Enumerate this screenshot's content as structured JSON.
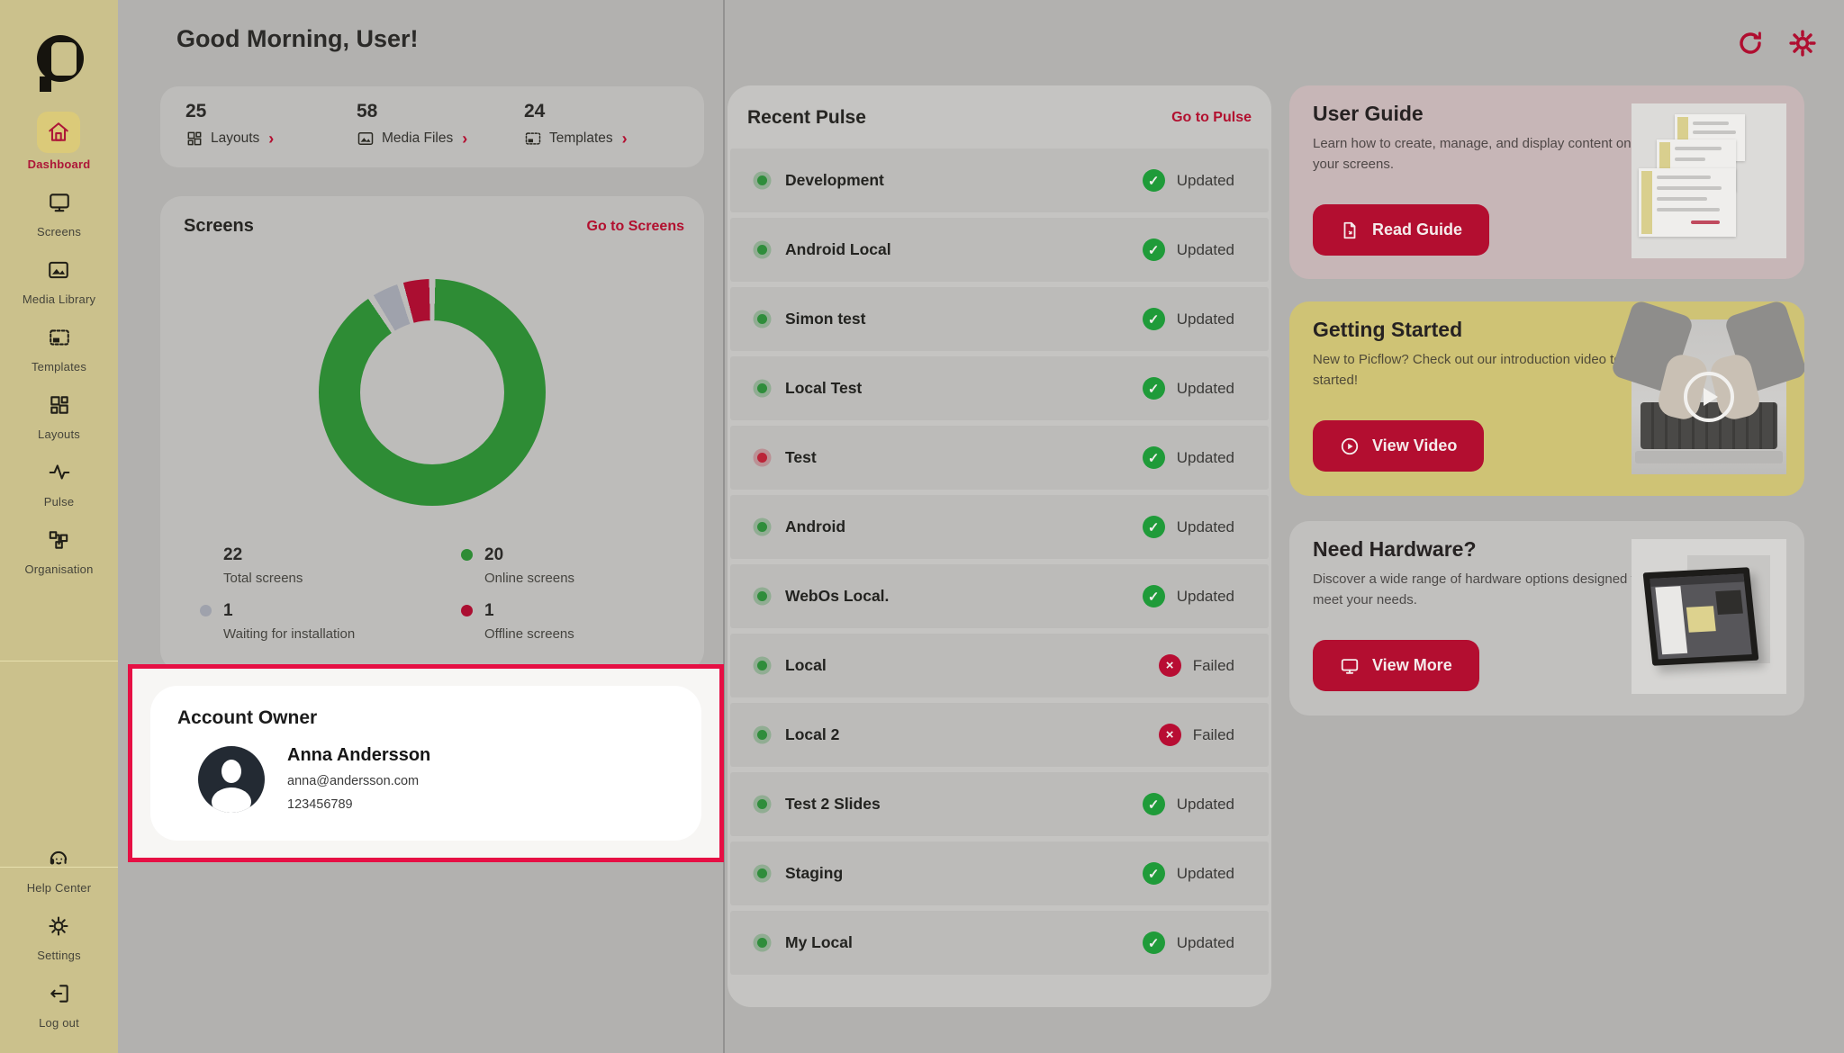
{
  "header": {
    "greeting": "Good Morning, User!"
  },
  "glyphs": {
    "chevron": "›",
    "updated": "✓",
    "failed": "×"
  },
  "colors": {
    "accent_red": "#b30e30",
    "highlight_border": "#e60f44",
    "sidebar_bg": "#cbc18c",
    "card_bg": "#bdbcba",
    "online_green": "#2e8c35",
    "waiting_gray": "#9fa2ac",
    "offline_red": "#ab0e31",
    "status_updated": "#1f9b39",
    "status_failed": "#b80d33"
  },
  "sidebar": {
    "items": [
      {
        "id": "dashboard",
        "label": "Dashboard",
        "active": true
      },
      {
        "id": "screens",
        "label": "Screens",
        "active": false
      },
      {
        "id": "media-library",
        "label": "Media Library",
        "active": false
      },
      {
        "id": "templates",
        "label": "Templates",
        "active": false
      },
      {
        "id": "layouts",
        "label": "Layouts",
        "active": false
      },
      {
        "id": "pulse",
        "label": "Pulse",
        "active": false
      },
      {
        "id": "organisation",
        "label": "Organisation",
        "active": false
      }
    ],
    "footer_items": [
      {
        "id": "help-center",
        "label": "Help Center"
      },
      {
        "id": "settings",
        "label": "Settings"
      },
      {
        "id": "log-out",
        "label": "Log out"
      }
    ]
  },
  "stats": [
    {
      "value": "25",
      "label": "Layouts"
    },
    {
      "value": "58",
      "label": "Media Files"
    },
    {
      "value": "24",
      "label": "Templates"
    }
  ],
  "screens_card": {
    "title": "Screens",
    "link": "Go to Screens",
    "legend": [
      {
        "value": "22",
        "label": "Total screens",
        "dot": null
      },
      {
        "value": "20",
        "label": "Online screens",
        "dot": "#2e8c35"
      },
      {
        "value": "1",
        "label": "Waiting for installation",
        "dot": "#9fa2ac"
      },
      {
        "value": "1",
        "label": "Offline screens",
        "dot": "#ab0e31"
      }
    ]
  },
  "chart_data": {
    "type": "pie",
    "donut": true,
    "title": "Screens",
    "labels": [
      "Online screens",
      "Waiting for installation",
      "Offline screens"
    ],
    "values": [
      20,
      1,
      1
    ],
    "colors": [
      "#2e8c35",
      "#9fa2ac",
      "#ab0e31"
    ],
    "total": 22,
    "total_label": "Total screens",
    "start_angle_deg": 0,
    "direction": "clockwise",
    "legend_position": "below"
  },
  "account": {
    "title": "Account Owner",
    "name": "Anna Andersson",
    "email": "anna@andersson.com",
    "phone": "123456789"
  },
  "pulse": {
    "title": "Recent Pulse",
    "link": "Go to Pulse",
    "status_labels": {
      "updated": "Updated",
      "failed": "Failed"
    },
    "rows": [
      {
        "name": "Development",
        "dot": "green",
        "status": "updated"
      },
      {
        "name": "Android Local",
        "dot": "green",
        "status": "updated"
      },
      {
        "name": "Simon test",
        "dot": "green",
        "status": "updated"
      },
      {
        "name": "Local Test",
        "dot": "green",
        "status": "updated"
      },
      {
        "name": "Test",
        "dot": "red",
        "status": "updated"
      },
      {
        "name": "Android",
        "dot": "green",
        "status": "updated"
      },
      {
        "name": "WebOs Local.",
        "dot": "green",
        "status": "updated"
      },
      {
        "name": "Local",
        "dot": "green",
        "status": "failed"
      },
      {
        "name": "Local 2",
        "dot": "green",
        "status": "failed"
      },
      {
        "name": "Test 2 Slides",
        "dot": "green",
        "status": "updated"
      },
      {
        "name": "Staging",
        "dot": "green",
        "status": "updated"
      },
      {
        "name": "My Local",
        "dot": "green",
        "status": "updated"
      }
    ]
  },
  "cards": [
    {
      "title": "User Guide",
      "body": "Learn how to create, manage, and display content on your screens.",
      "button": "Read Guide"
    },
    {
      "title": "Getting Started",
      "body": "New to Picflow? Check out our introduction video to get started!",
      "button": "View Video"
    },
    {
      "title": "Need Hardware?",
      "body": "Discover a wide range of hardware options designed to meet your needs.",
      "button": "View More"
    }
  ]
}
